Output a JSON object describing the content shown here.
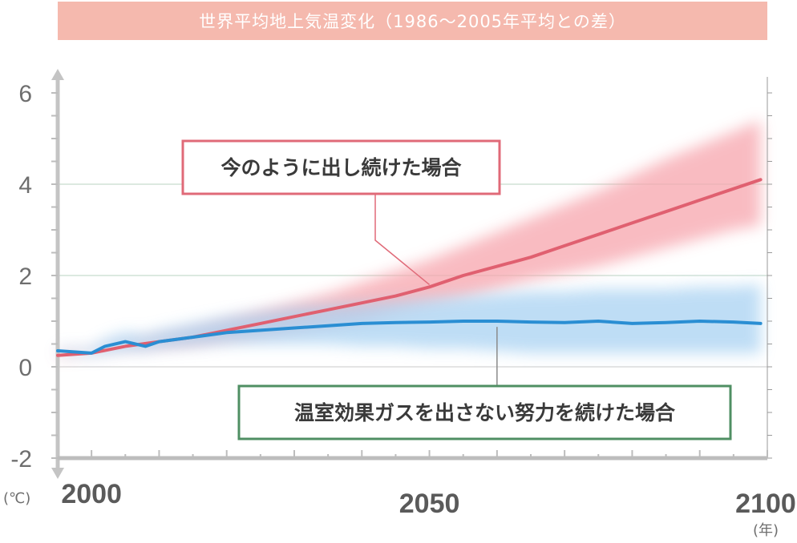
{
  "title": "世界平均地上気温変化（1986～2005年平均との差）",
  "chart_data": {
    "type": "line",
    "title": "世界平均地上気温変化（1986～2005年平均との差）",
    "y_unit": "(℃)",
    "x_unit": "(年)",
    "ylim": [
      -2,
      6
    ],
    "xlim": [
      1995,
      2100
    ],
    "y_ticks": [
      -2,
      0,
      2,
      4,
      6
    ],
    "x_tick_labels": [
      "2000",
      "2050",
      "2100"
    ],
    "x_ticks": [
      2000,
      2050,
      2100
    ],
    "series": [
      {
        "name": "今のように出し続けた場合",
        "color": "#e06070",
        "band_color": "#f7a5ad",
        "x": [
          1995,
          2000,
          2005,
          2010,
          2015,
          2020,
          2025,
          2030,
          2035,
          2040,
          2045,
          2050,
          2055,
          2060,
          2065,
          2070,
          2075,
          2080,
          2085,
          2090,
          2095,
          2099
        ],
        "values": [
          0.25,
          0.3,
          0.45,
          0.55,
          0.65,
          0.8,
          0.95,
          1.1,
          1.25,
          1.4,
          1.55,
          1.75,
          2.0,
          2.2,
          2.4,
          2.65,
          2.9,
          3.15,
          3.4,
          3.65,
          3.9,
          4.1
        ],
        "band_lower": [
          0.2,
          0.3,
          0.4,
          0.45,
          0.5,
          0.6,
          0.7,
          0.8,
          0.9,
          1.0,
          1.2,
          1.35,
          1.5,
          1.7,
          1.9,
          2.05,
          2.2,
          2.4,
          2.6,
          2.8,
          3.0,
          3.1
        ],
        "band_upper": [
          0.3,
          0.35,
          0.5,
          0.65,
          0.8,
          1.0,
          1.2,
          1.4,
          1.6,
          1.85,
          2.1,
          2.35,
          2.65,
          2.95,
          3.25,
          3.55,
          3.85,
          4.2,
          4.55,
          4.85,
          5.15,
          5.4
        ]
      },
      {
        "name": "温室効果ガスを出さない努力を続けた場合",
        "color": "#2a8ed3",
        "band_color": "#a9d2f2",
        "x": [
          1995,
          2000,
          2002,
          2005,
          2008,
          2010,
          2015,
          2020,
          2025,
          2030,
          2035,
          2040,
          2045,
          2050,
          2055,
          2060,
          2065,
          2070,
          2075,
          2080,
          2085,
          2090,
          2095,
          2099
        ],
        "values": [
          0.35,
          0.3,
          0.45,
          0.55,
          0.45,
          0.55,
          0.65,
          0.75,
          0.8,
          0.85,
          0.9,
          0.95,
          0.97,
          0.98,
          1.0,
          1.0,
          0.98,
          0.97,
          1.0,
          0.95,
          0.97,
          1.0,
          0.98,
          0.95
        ],
        "band_lower": [
          0.3,
          0.25,
          0.3,
          0.35,
          0.35,
          0.4,
          0.45,
          0.5,
          0.5,
          0.5,
          0.5,
          0.45,
          0.45,
          0.4,
          0.4,
          0.35,
          0.3,
          0.3,
          0.3,
          0.3,
          0.3,
          0.3,
          0.3,
          0.3
        ],
        "band_upper": [
          0.4,
          0.4,
          0.6,
          0.75,
          0.7,
          0.8,
          0.95,
          1.1,
          1.2,
          1.3,
          1.35,
          1.4,
          1.45,
          1.5,
          1.55,
          1.6,
          1.65,
          1.65,
          1.7,
          1.7,
          1.7,
          1.75,
          1.75,
          1.8
        ]
      }
    ],
    "annotations": [
      {
        "text": "今のように出し続けた場合",
        "border": "#e06a78",
        "target_x": 2050,
        "target_y": 1.8
      },
      {
        "text": "温室効果ガスを出さない努力を続けた場合",
        "border": "#4f8f63",
        "target_x": 2060,
        "target_y": 0.98
      }
    ],
    "grid": true
  }
}
